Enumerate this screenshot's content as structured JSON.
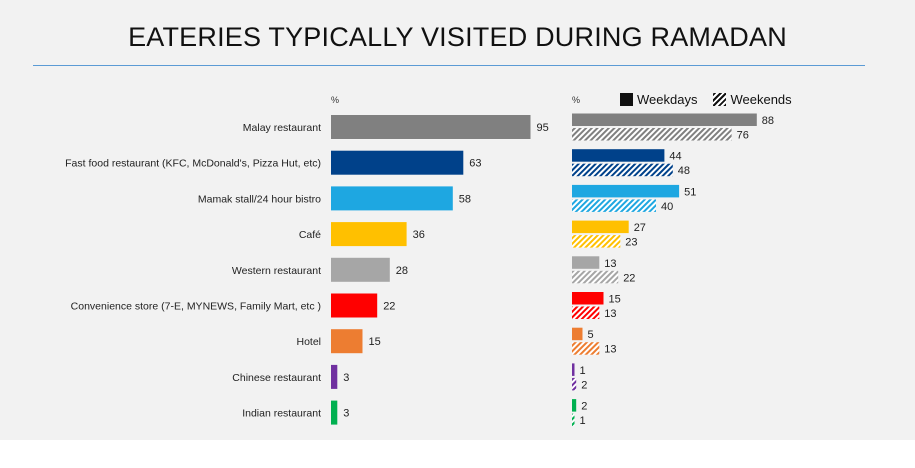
{
  "title": "EATERIES TYPICALLY VISITED DURING RAMADAN",
  "left_unit": "%",
  "right_unit": "%",
  "legend": {
    "weekdays": "Weekdays",
    "weekends": "Weekends"
  },
  "chart_data": [
    {
      "type": "bar",
      "orientation": "horizontal",
      "categories": [
        "Malay restaurant",
        "Fast food restaurant (KFC, McDonald's, Pizza Hut, etc)",
        "Mamak stall/24 hour bistro",
        "Café",
        "Western restaurant",
        "Convenience store (7-E, MYNEWS, Family Mart, etc )",
        "Hotel",
        "Chinese restaurant",
        "Indian restaurant"
      ],
      "values": [
        95,
        63,
        58,
        36,
        28,
        22,
        15,
        3,
        3
      ],
      "colors": [
        "#808080",
        "#00418a",
        "#1ea7e1",
        "#ffc000",
        "#a6a6a6",
        "#ff0000",
        "#ed7d31",
        "#7030a0",
        "#00b050"
      ],
      "ylabel": "%",
      "xlim": [
        0,
        100
      ]
    },
    {
      "type": "bar",
      "orientation": "horizontal",
      "categories": [
        "Malay restaurant",
        "Fast food restaurant (KFC, McDonald's, Pizza Hut, etc)",
        "Mamak stall/24 hour bistro",
        "Café",
        "Western restaurant",
        "Convenience store (7-E, MYNEWS, Family Mart, etc )",
        "Hotel",
        "Chinese restaurant",
        "Indian restaurant"
      ],
      "series": [
        {
          "name": "Weekdays",
          "style": "solid",
          "values": [
            88,
            44,
            51,
            27,
            13,
            15,
            5,
            1,
            2
          ]
        },
        {
          "name": "Weekends",
          "style": "hatched",
          "values": [
            76,
            48,
            40,
            23,
            22,
            13,
            13,
            2,
            1
          ]
        }
      ],
      "colors": [
        "#808080",
        "#00418a",
        "#1ea7e1",
        "#ffc000",
        "#a6a6a6",
        "#ff0000",
        "#ed7d31",
        "#7030a0",
        "#00b050"
      ],
      "ylabel": "%",
      "xlim": [
        0,
        100
      ],
      "legend_position": "top-right"
    }
  ]
}
